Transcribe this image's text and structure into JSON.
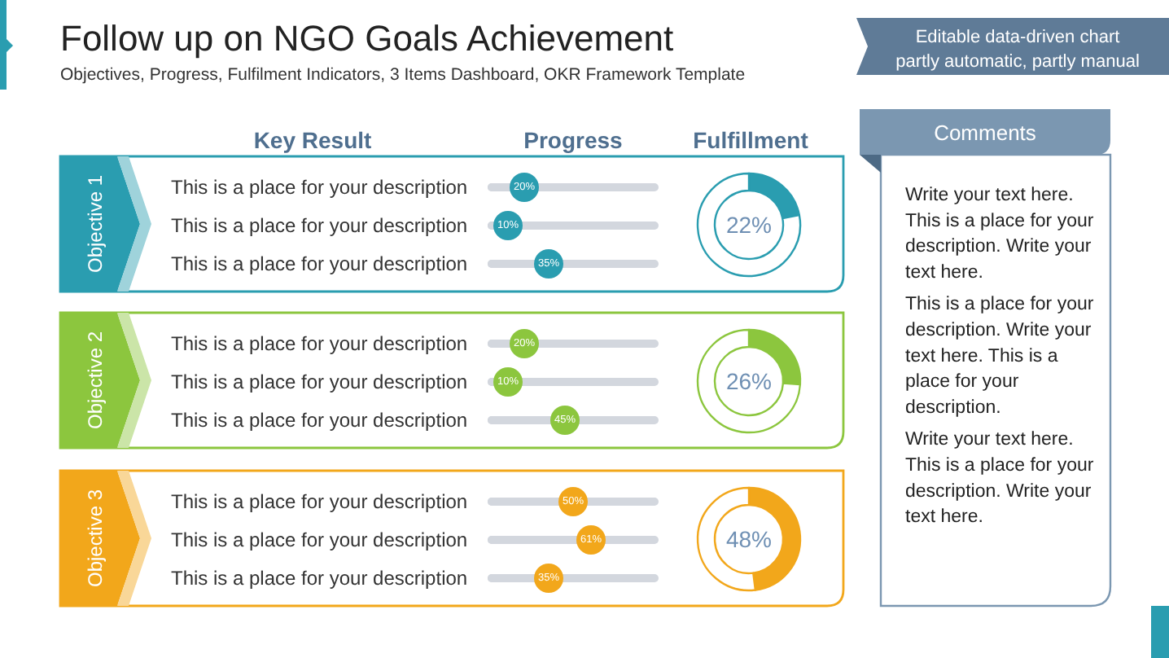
{
  "chart_data": [
    {
      "type": "other",
      "title": "Follow up on NGO Goals Achievement",
      "subtitle": "Objectives, Progress, Fulfilment Indicators, 3 Items Dashboard, OKR Framework Template",
      "annotations": [
        "Editable data-driven chart\npartly automatic, partly manual",
        "Key Result",
        "Progress",
        "Fulfillment"
      ]
    },
    {
      "type": "lollipop",
      "orientation": "horizontal",
      "ylabel": "Objective 1",
      "categories": [
        "This is a place for your description",
        "This is a place for your description",
        "This is a place for your description"
      ],
      "values": [
        20,
        10,
        35
      ],
      "value_labels": [
        "20%",
        "10%",
        "35%"
      ],
      "color": "#2a9db0",
      "xlim": [
        0,
        100
      ],
      "grid": "y",
      "marker": "circle",
      "tick_labels": "y"
    },
    {
      "type": "donut",
      "categories": [
        null,
        null
      ],
      "values": [
        22,
        78
      ],
      "colors": [
        "#2a9db0",
        "#ffffff"
      ],
      "annotations": [
        "22%"
      ]
    },
    {
      "type": "lollipop",
      "orientation": "horizontal",
      "ylabel": "Objective 2",
      "categories": [
        "This is a place for your description",
        "This is a place for your description",
        "This is a place for your description"
      ],
      "values": [
        20,
        10,
        45
      ],
      "value_labels": [
        "20%",
        "10%",
        "45%"
      ],
      "color": "#8cc63e",
      "xlim": [
        0,
        100
      ],
      "grid": "y",
      "marker": "circle",
      "tick_labels": "y"
    },
    {
      "type": "donut",
      "categories": [
        null,
        null
      ],
      "values": [
        26,
        74
      ],
      "colors": [
        "#8cc63e",
        "#ffffff"
      ],
      "annotations": [
        "26%"
      ]
    },
    {
      "type": "lollipop",
      "orientation": "horizontal",
      "ylabel": "Objective 3",
      "categories": [
        "This is a place for your description",
        "This is a place for your description",
        "This is a place for your description"
      ],
      "values": [
        50,
        61,
        35
      ],
      "value_labels": [
        "50%",
        "61%",
        "35%"
      ],
      "color": "#f2a71b",
      "xlim": [
        0,
        100
      ],
      "grid": "y",
      "marker": "circle",
      "tick_labels": "y"
    },
    {
      "type": "donut",
      "categories": [
        null,
        null
      ],
      "values": [
        48,
        52
      ],
      "colors": [
        "#f2a71b",
        "#ffffff"
      ],
      "annotations": [
        "48%"
      ]
    },
    {
      "type": "other",
      "title": "Comments",
      "annotations": [
        "Write your text here. This is a place for your description. Write your text here.",
        "This is a place for your description. Write your text here. This is a place for your description.",
        "Write your text here. This is a place for your description. Write your text here."
      ]
    }
  ]
}
